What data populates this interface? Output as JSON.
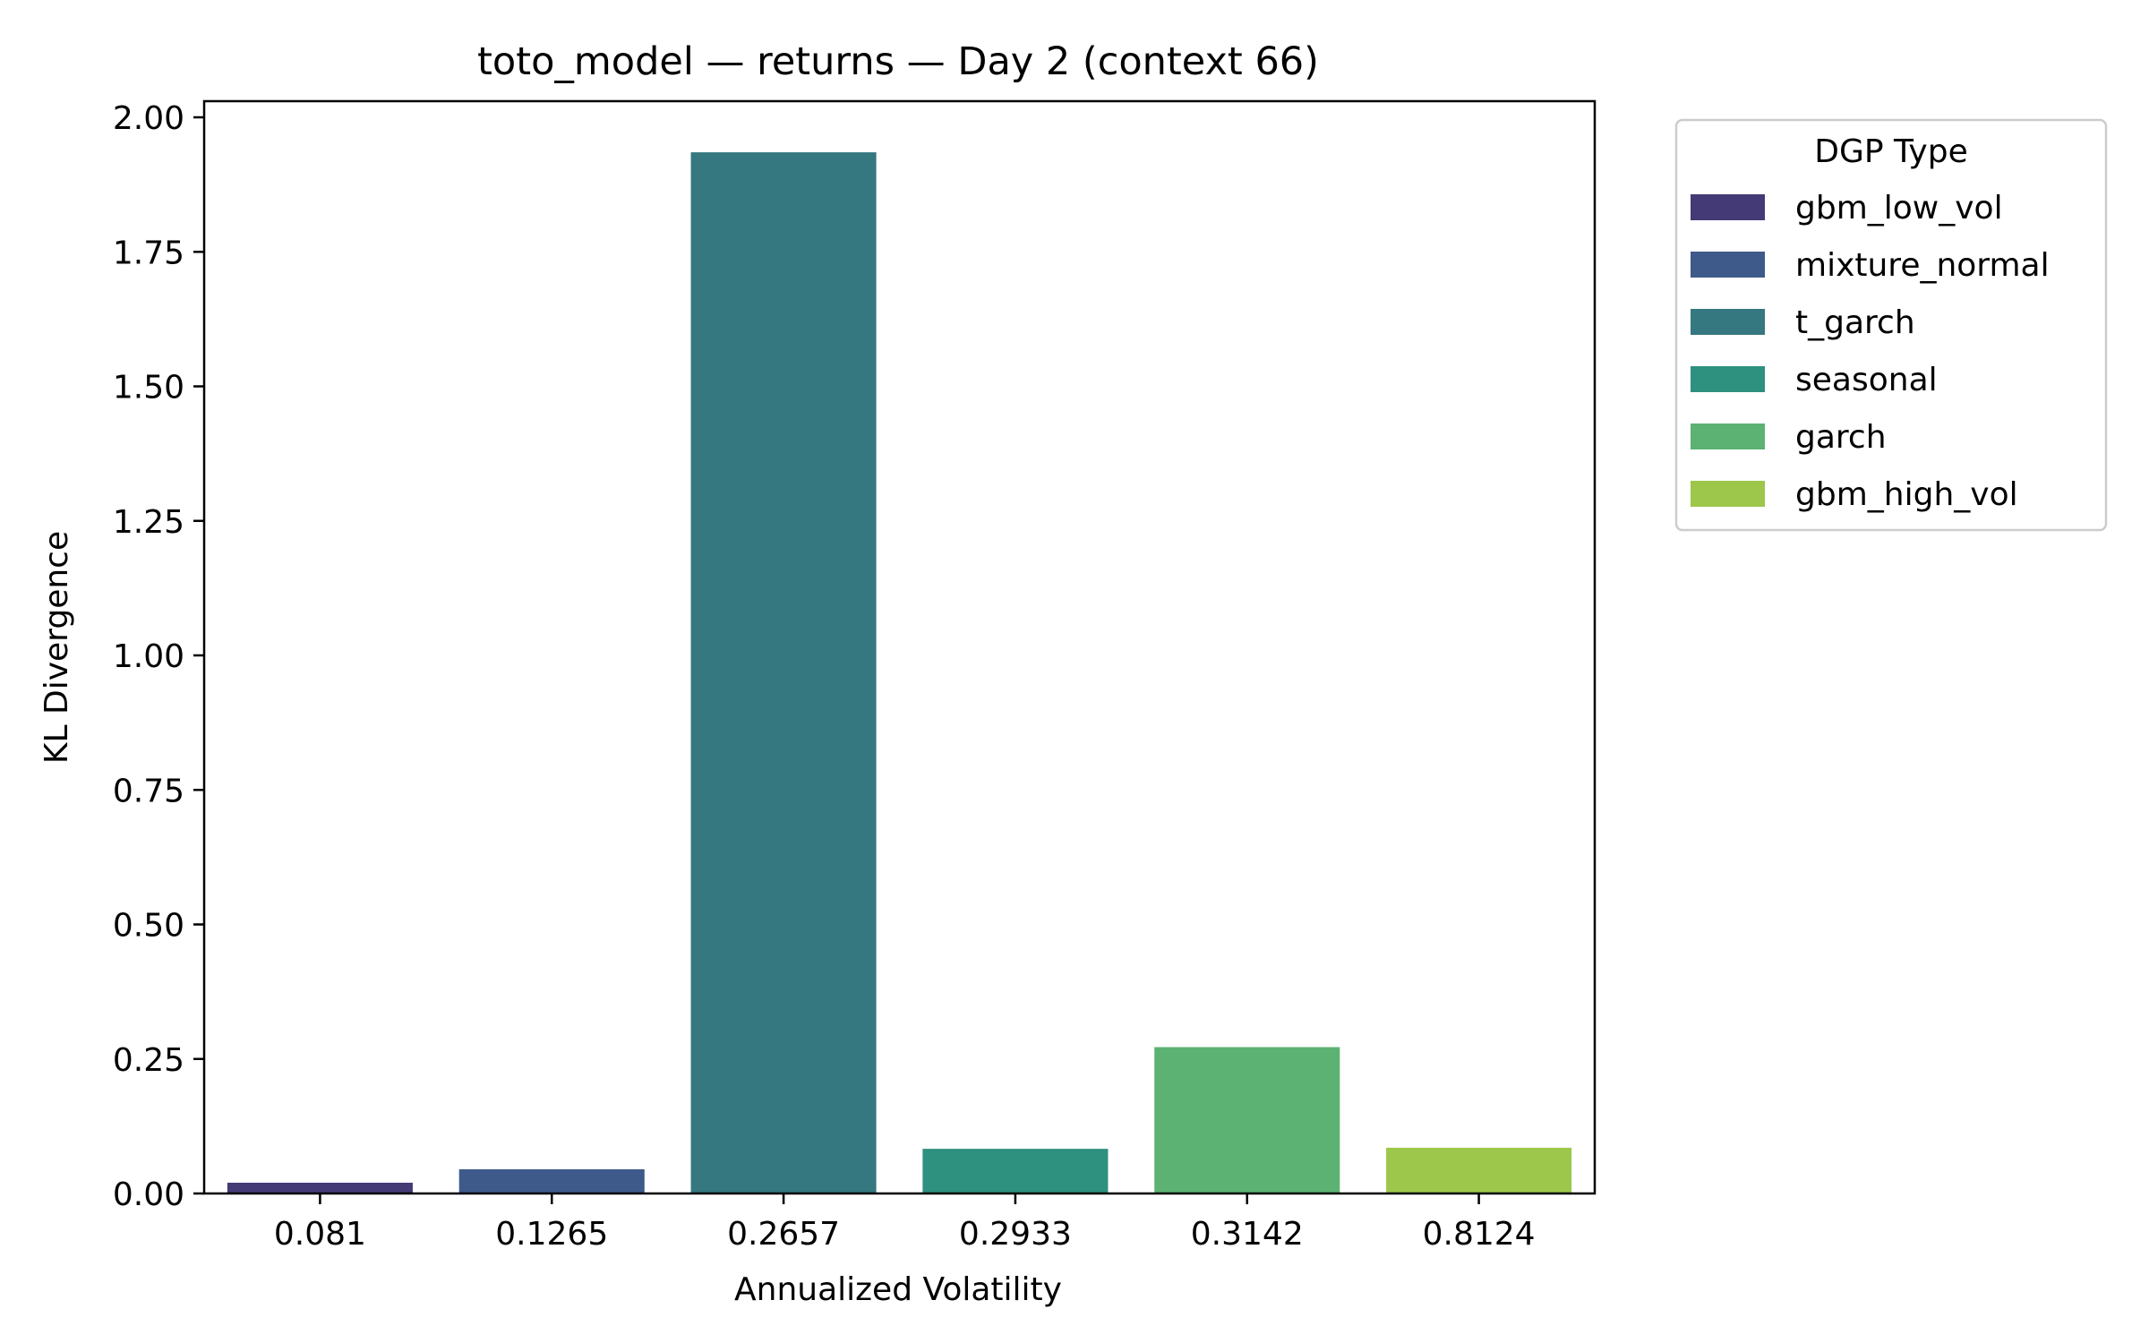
{
  "chart_data": {
    "type": "bar",
    "title": "toto_model — returns — Day 2 (context 66)",
    "xlabel": "Annualized Volatility",
    "ylabel": "KL Divergence",
    "categories": [
      "0.081",
      "0.1265",
      "0.2657",
      "0.2933",
      "0.3142",
      "0.8124"
    ],
    "values": [
      0.02,
      0.045,
      1.935,
      0.083,
      0.272,
      0.085
    ],
    "series_names": [
      "gbm_low_vol",
      "mixture_normal",
      "t_garch",
      "seasonal",
      "garch",
      "gbm_high_vol"
    ],
    "colors": [
      "#443a76",
      "#3e5a8a",
      "#35787f",
      "#2e907e",
      "#5bb272",
      "#9cc74b"
    ],
    "ylim": [
      0,
      2.03
    ],
    "yticks": [
      "0.00",
      "0.25",
      "0.50",
      "0.75",
      "1.00",
      "1.25",
      "1.50",
      "1.75",
      "2.00"
    ],
    "legend": {
      "title": "DGP Type",
      "placement": "outside-right",
      "entries": [
        "gbm_low_vol",
        "mixture_normal",
        "t_garch",
        "seasonal",
        "garch",
        "gbm_high_vol"
      ]
    },
    "grid": false
  }
}
